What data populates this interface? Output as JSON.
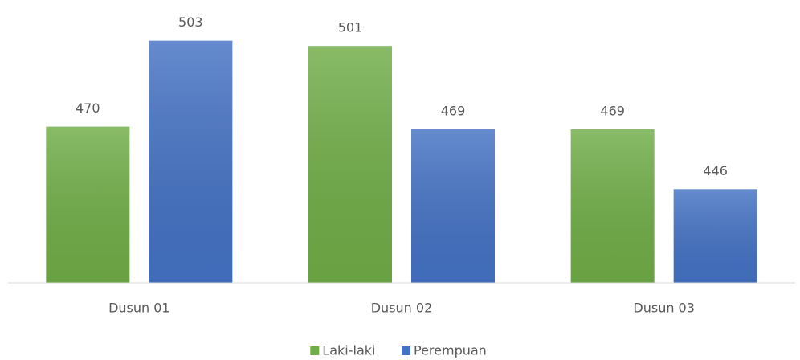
{
  "chart_data": {
    "type": "bar",
    "categories": [
      "Dusun 01",
      "Dusun 02",
      "Dusun 03"
    ],
    "series": [
      {
        "name": "Laki-laki",
        "color": "#70ad47",
        "values": [
          470,
          501,
          469
        ]
      },
      {
        "name": "Perempuan",
        "color": "#4472c4",
        "values": [
          503,
          469,
          446
        ]
      }
    ],
    "ylim": [
      410,
      510
    ],
    "legend": "bottom"
  }
}
